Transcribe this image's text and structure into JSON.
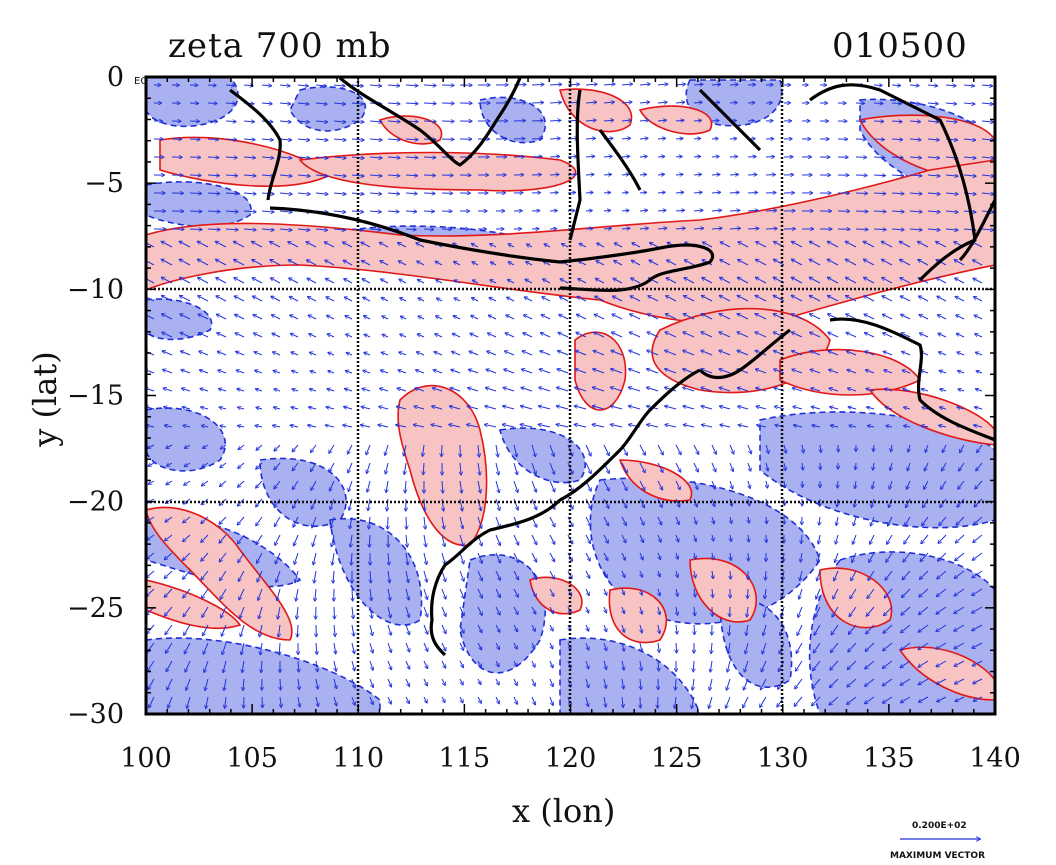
{
  "map": {
    "title_left": "zeta 700 mb",
    "title_right": "010500",
    "xlabel": "x (lon)",
    "ylabel": "y (lat)",
    "corner_label": "EQ",
    "x_ticks": [
      "100",
      "105",
      "110",
      "115",
      "120",
      "125",
      "130",
      "135",
      "140"
    ],
    "y_ticks": [
      "0",
      "−5",
      "−10",
      "−15",
      "−20",
      "−25",
      "−30"
    ],
    "x_range": [
      100,
      140
    ],
    "y_range": [
      -30,
      0
    ],
    "grid_lon": [
      110,
      120,
      130
    ],
    "grid_lat": [
      -10,
      -20
    ],
    "vector_legend": {
      "value": "0.200E+02",
      "caption": "MAXIMUM VECTOR"
    },
    "colors": {
      "positive_fill": "#f7c3c3",
      "positive_line": "#e01818",
      "negative_fill": "#aab1f0",
      "negative_line": "#1f2fd8",
      "coast": "#000000",
      "vectors": "#2233dd"
    }
  }
}
